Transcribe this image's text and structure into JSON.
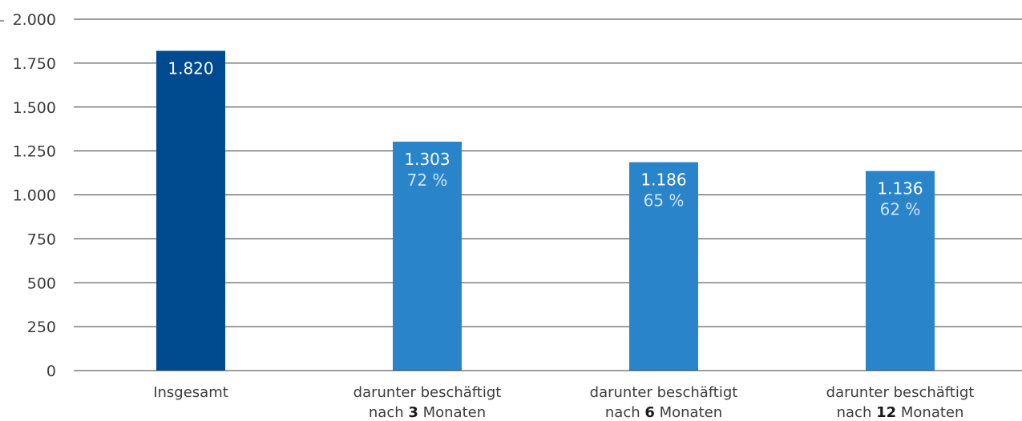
{
  "chart_data": {
    "type": "bar",
    "title": "",
    "xlabel": "",
    "ylabel": "",
    "ylim": [
      0,
      2000
    ],
    "grid": true,
    "yticks": [
      0,
      250,
      500,
      750,
      1000,
      1250,
      1500,
      1750,
      2000
    ],
    "ytick_labels": [
      "0",
      "250",
      "500",
      "750",
      "1.000",
      "1.250",
      "1.500",
      "1.750",
      "2.000"
    ],
    "categories": [
      {
        "pre": "Insgesamt",
        "line2_pre": "",
        "num": "",
        "line2_post": ""
      },
      {
        "pre": "darunter beschäftigt",
        "line2_pre": "nach ",
        "num": "3",
        "line2_post": " Monaten"
      },
      {
        "pre": "darunter beschäftigt",
        "line2_pre": "nach ",
        "num": "6",
        "line2_post": " Monaten"
      },
      {
        "pre": "darunter beschäftigt",
        "line2_pre": "nach ",
        "num": "12",
        "line2_post": " Monaten"
      }
    ],
    "values": [
      1820,
      1303,
      1186,
      1136
    ],
    "value_labels": [
      "1.820",
      "1.303",
      "1.186",
      "1.136"
    ],
    "percent_labels": [
      "",
      "72 %",
      "65 %",
      "62 %"
    ],
    "colors": [
      "#004a8f",
      "#2a84ca",
      "#2a84ca",
      "#2a84ca"
    ]
  }
}
